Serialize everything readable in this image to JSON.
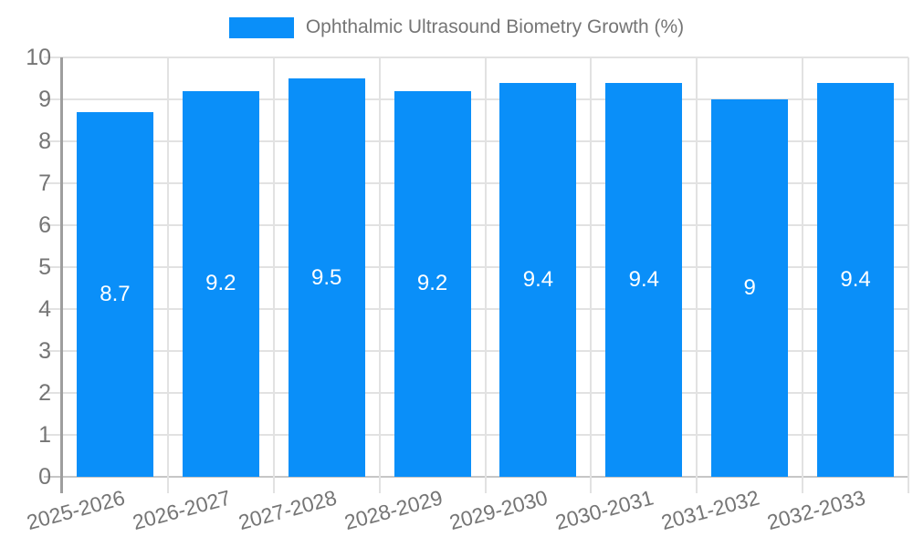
{
  "legend": {
    "label": "Ophthalmic Ultrasound Biometry Growth (%)"
  },
  "chart_data": {
    "type": "bar",
    "title": "Ophthalmic Ultrasound Biometry Growth (%)",
    "categories": [
      "2025-2026",
      "2026-2027",
      "2027-2028",
      "2028-2029",
      "2029-2030",
      "2030-2031",
      "2031-2032",
      "2032-2033"
    ],
    "values": [
      8.7,
      9.2,
      9.5,
      9.2,
      9.4,
      9.4,
      9,
      9.4
    ],
    "value_labels": [
      "8.7",
      "9.2",
      "9.5",
      "9.2",
      "9.4",
      "9.4",
      "9",
      "9.4"
    ],
    "xlabel": "",
    "ylabel": "",
    "ylim": [
      0,
      10
    ],
    "ytick_step": 1,
    "yticks": [
      "0",
      "1",
      "2",
      "3",
      "4",
      "5",
      "6",
      "7",
      "8",
      "9",
      "10"
    ],
    "grid": "on",
    "legend_position": "top",
    "colors": {
      "bar": "#0a8ff9",
      "value_label": "#ffffff",
      "axis_text": "#757575",
      "gridline": "#e2e2e2",
      "axis_line": "#9e9e9e",
      "background": "#ffffff"
    }
  }
}
